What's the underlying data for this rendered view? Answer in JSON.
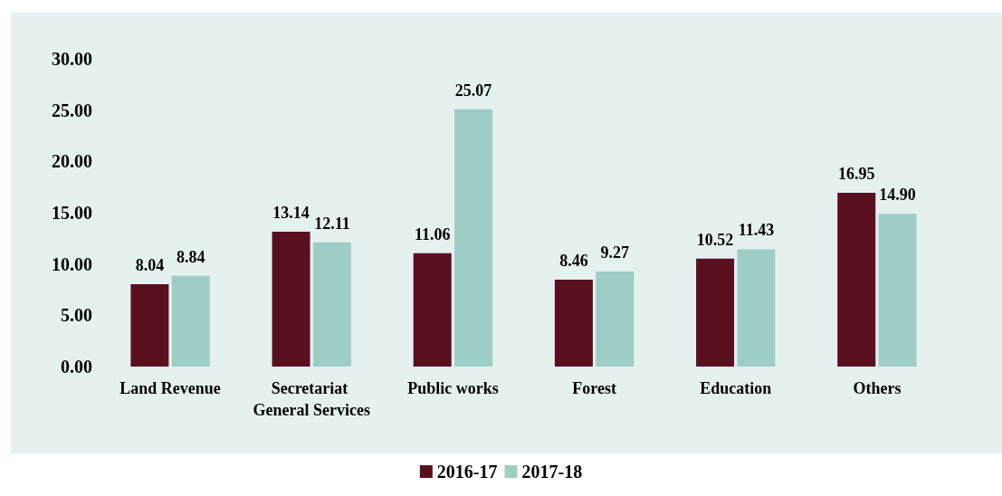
{
  "chart_data": {
    "type": "bar",
    "categories": [
      "Land Revenue",
      "Secretariat General Services",
      "Public works",
      "Forest",
      "Education",
      "Others"
    ],
    "series": [
      {
        "name": "2016-17",
        "color": "#5a0f1f",
        "values": [
          8.04,
          13.14,
          11.06,
          8.46,
          10.52,
          16.95
        ]
      },
      {
        "name": "2017-18",
        "color": "#9ecdc6",
        "values": [
          8.84,
          12.11,
          25.07,
          9.27,
          11.43,
          14.9
        ]
      }
    ],
    "ylim": [
      0,
      30
    ],
    "yticks": [
      {
        "value": 0,
        "label": "0.00"
      },
      {
        "value": 5,
        "label": "5.00"
      },
      {
        "value": 10,
        "label": "10.00"
      },
      {
        "value": 15,
        "label": "15.00"
      },
      {
        "value": 20,
        "label": "20.00"
      },
      {
        "value": 25,
        "label": "25.00"
      },
      {
        "value": 30,
        "label": "30.00"
      }
    ],
    "value_labels": [
      [
        "8.04",
        "13.14",
        "11.06",
        "8.46",
        "10.52",
        "16.95"
      ],
      [
        "8.84",
        "12.11",
        "25.07",
        "9.27",
        "11.43",
        "14.90"
      ]
    ],
    "grid": false,
    "legend": "bottom"
  }
}
